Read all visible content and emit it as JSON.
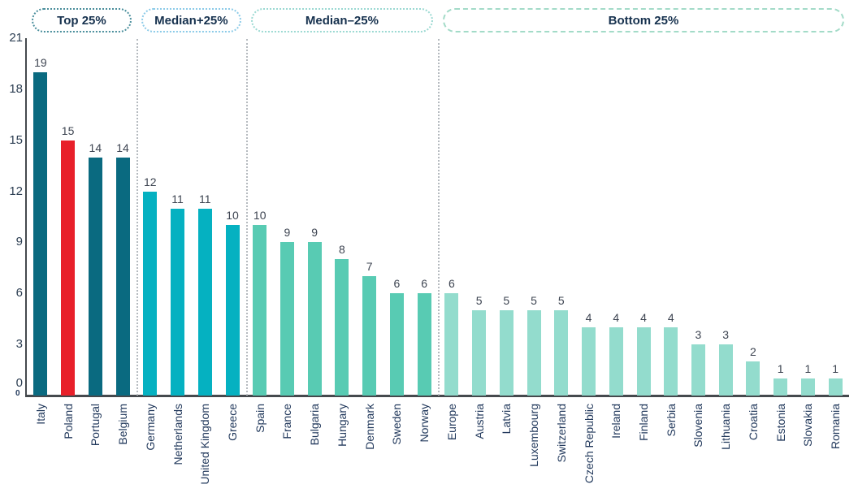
{
  "chart_data": {
    "type": "bar",
    "title": "",
    "xlabel": "",
    "ylabel": "",
    "ylim": [
      0,
      21
    ],
    "y_ticks": [
      21,
      18,
      15,
      12,
      9,
      6,
      3,
      0
    ],
    "origin_label": "0",
    "grid": false,
    "legend": "none",
    "quartile_bands": [
      {
        "label": "Top 25%",
        "count": 4,
        "bar_color": "#0a6a80",
        "border_color": "#4a8e9c",
        "border_style": "dotted"
      },
      {
        "label": "Median+25%",
        "count": 4,
        "bar_color": "#05b1c1",
        "border_color": "#8ccbe8",
        "border_style": "dotted"
      },
      {
        "label": "Median–25%",
        "count": 7,
        "bar_color": "#58cbb3",
        "border_color": "#9bd9d2",
        "border_style": "dotted"
      },
      {
        "label": "Bottom 25%",
        "count": 15,
        "bar_color": "#93dccd",
        "border_color": "#a3dbc8",
        "border_style": "dashed"
      }
    ],
    "categories": [
      "Italy",
      "Poland",
      "Portugal",
      "Belgium",
      "Germany",
      "Netherlands",
      "United Kingdom",
      "Greece",
      "Spain",
      "France",
      "Bulgaria",
      "Hungary",
      "Denmark",
      "Sweden",
      "Norway",
      "Europe",
      "Austria",
      "Latvia",
      "Luxembourg",
      "Switzerland",
      "Czech Republic",
      "Ireland",
      "Finland",
      "Serbia",
      "Slovenia",
      "Lithuania",
      "Croatia",
      "Estonia",
      "Slovakia",
      "Romania"
    ],
    "values": [
      19,
      15,
      14,
      14,
      12,
      11,
      11,
      10,
      10,
      9,
      9,
      8,
      7,
      6,
      6,
      6,
      5,
      5,
      5,
      5,
      4,
      4,
      4,
      4,
      3,
      3,
      2,
      1,
      1,
      1
    ],
    "highlight": {
      "category": "Poland",
      "color": "#e8202a"
    }
  },
  "colors": {
    "background": "#ffffff",
    "axis_line": "#45494d",
    "tick_label": "#2c3e52",
    "value_label": "#3d4451",
    "category_label": "#22395c",
    "pill_text": "#16314e",
    "divider": "#b5babf"
  }
}
